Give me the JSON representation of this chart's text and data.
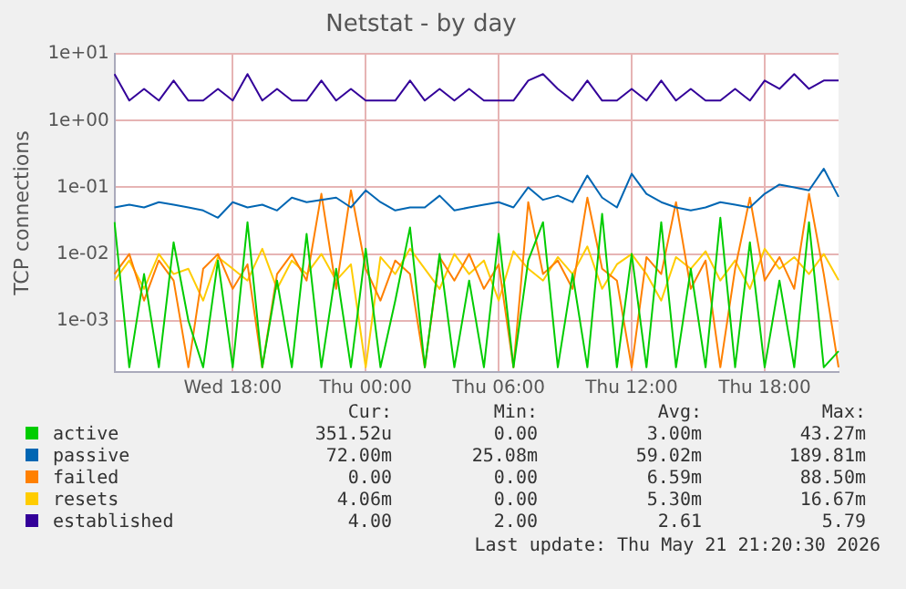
{
  "chart_data": {
    "type": "line",
    "title": "Netstat - by day",
    "ylabel": "TCP connections",
    "log": true,
    "grid": true,
    "legend": "bottom",
    "marker": "none",
    "line_style": "solid",
    "categories": [
      null,
      null,
      null,
      null,
      null,
      null,
      null,
      null,
      "Wed 18:00",
      null,
      null,
      null,
      null,
      null,
      null,
      null,
      null,
      "Thu 00:00",
      null,
      null,
      null,
      null,
      null,
      null,
      null,
      null,
      "Thu 06:00",
      null,
      null,
      null,
      null,
      null,
      null,
      null,
      null,
      "Thu 12:00",
      null,
      null,
      null,
      null,
      null,
      null,
      null,
      null,
      "Thu 18:00",
      null,
      null,
      null,
      null,
      null
    ],
    "ylim": [
      0.00017,
      10
    ],
    "yticks": [
      {
        "value": 0.001,
        "label": "1e-03"
      },
      {
        "value": 0.01,
        "label": "1e-02"
      },
      {
        "value": 0.1,
        "label": "1e-01"
      },
      {
        "value": 1,
        "label": "1e+00"
      },
      {
        "value": 10,
        "label": "1e+01"
      }
    ],
    "series": [
      {
        "name": "active",
        "color": "#00cc00",
        "values": [
          0.03,
          0.0002,
          0.005,
          0.0002,
          0.015,
          0.001,
          0.0002,
          0.008,
          0.0002,
          0.03,
          0.0002,
          0.004,
          0.0002,
          0.02,
          0.0002,
          0.006,
          0.0002,
          0.012,
          0.0002,
          0.002,
          0.025,
          0.0002,
          0.01,
          0.0002,
          0.004,
          0.0002,
          0.02,
          0.0002,
          0.008,
          0.03,
          0.0002,
          0.005,
          0.0002,
          0.04,
          0.0002,
          0.01,
          0.0002,
          0.03,
          0.0002,
          0.006,
          0.0002,
          0.035,
          0.0002,
          0.015,
          0.0002,
          0.004,
          0.0002,
          0.03,
          0.0002,
          0.00035
        ]
      },
      {
        "name": "passive",
        "color": "#0066b3",
        "values": [
          0.05,
          0.055,
          0.05,
          0.06,
          0.055,
          0.05,
          0.045,
          0.035,
          0.06,
          0.05,
          0.055,
          0.045,
          0.07,
          0.06,
          0.065,
          0.07,
          0.05,
          0.09,
          0.06,
          0.045,
          0.05,
          0.05,
          0.075,
          0.045,
          0.05,
          0.055,
          0.06,
          0.05,
          0.1,
          0.065,
          0.075,
          0.06,
          0.15,
          0.07,
          0.05,
          0.16,
          0.08,
          0.06,
          0.05,
          0.045,
          0.05,
          0.06,
          0.055,
          0.05,
          0.08,
          0.11,
          0.1,
          0.09,
          0.19,
          0.072
        ]
      },
      {
        "name": "failed",
        "color": "#ff8000",
        "values": [
          0.005,
          0.01,
          0.002,
          0.008,
          0.004,
          0.0002,
          0.006,
          0.01,
          0.003,
          0.007,
          0.0002,
          0.005,
          0.01,
          0.004,
          0.08,
          0.003,
          0.09,
          0.006,
          0.002,
          0.008,
          0.005,
          0.0002,
          0.009,
          0.004,
          0.01,
          0.003,
          0.007,
          0.0002,
          0.06,
          0.005,
          0.008,
          0.003,
          0.07,
          0.006,
          0.004,
          0.0002,
          0.009,
          0.005,
          0.06,
          0.003,
          0.008,
          0.0002,
          0.006,
          0.07,
          0.004,
          0.009,
          0.003,
          0.08,
          0.005,
          0.0002
        ]
      },
      {
        "name": "resets",
        "color": "#ffcc00",
        "values": [
          0.004,
          0.008,
          0.003,
          0.01,
          0.005,
          0.006,
          0.002,
          0.009,
          0.006,
          0.004,
          0.012,
          0.003,
          0.008,
          0.005,
          0.01,
          0.004,
          0.007,
          0.0002,
          0.009,
          0.005,
          0.012,
          0.006,
          0.003,
          0.01,
          0.005,
          0.008,
          0.002,
          0.011,
          0.006,
          0.004,
          0.009,
          0.005,
          0.013,
          0.003,
          0.007,
          0.01,
          0.005,
          0.002,
          0.009,
          0.006,
          0.011,
          0.004,
          0.008,
          0.003,
          0.012,
          0.006,
          0.009,
          0.005,
          0.01,
          0.00406
        ]
      },
      {
        "name": "established",
        "color": "#330099",
        "values": [
          5,
          2,
          3,
          2,
          4,
          2,
          2,
          3,
          2,
          5,
          2,
          3,
          2,
          2,
          4,
          2,
          3,
          2,
          2,
          2,
          4,
          2,
          3,
          2,
          3,
          2,
          2,
          2,
          4,
          5,
          3,
          2,
          4,
          2,
          2,
          3,
          2,
          4,
          2,
          3,
          2,
          2,
          3,
          2,
          4,
          3,
          5,
          3,
          4,
          4
        ]
      }
    ],
    "annotations": [
      "Cur:",
      "Min:",
      "Avg:",
      "Max:",
      "351.52u",
      "0.00",
      "3.00m",
      "43.27m",
      "72.00m",
      "25.08m",
      "59.02m",
      "189.81m",
      "0.00",
      "0.00",
      "6.59m",
      "88.50m",
      "4.06m",
      "0.00",
      "5.30m",
      "16.67m",
      "4.00",
      "2.00",
      "2.61",
      "5.79",
      "Last update: Thu May 21 21:20:30 2026"
    ]
  }
}
